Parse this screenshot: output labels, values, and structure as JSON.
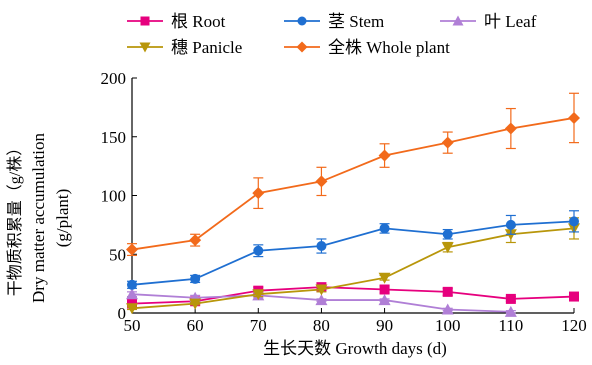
{
  "chart_data": {
    "type": "line",
    "title": "",
    "xlabel": "生长天数 Growth days (d)",
    "ylabel_lines": [
      "干物质积累量（g/株）",
      "Dry matter accumulation",
      "(g/plant)"
    ],
    "x": [
      50,
      60,
      70,
      80,
      90,
      100,
      110,
      120
    ],
    "xlim": [
      50,
      120
    ],
    "ylim": [
      0,
      200
    ],
    "xticks": [
      "50",
      "60",
      "70",
      "80",
      "90",
      "100",
      "110",
      "120"
    ],
    "yticks": [
      "0",
      "50",
      "100",
      "150",
      "200"
    ],
    "grid": false,
    "legend_position": "top",
    "series": [
      {
        "name": "根 Root",
        "color": "#e6007e",
        "marker": "square",
        "values": [
          8,
          10,
          19,
          22,
          20,
          18,
          12,
          14
        ],
        "errors": [
          2,
          2,
          3,
          2,
          3,
          3,
          2,
          2
        ]
      },
      {
        "name": "茎 Stem",
        "color": "#1f6fd1",
        "marker": "circle",
        "values": [
          24,
          29,
          53,
          57,
          72,
          67,
          75,
          78
        ],
        "errors": [
          3,
          3,
          5,
          6,
          4,
          4,
          8,
          9
        ]
      },
      {
        "name": "叶 Leaf",
        "color": "#b07fd6",
        "marker": "triangle-up",
        "values": [
          16,
          13,
          15,
          11,
          11,
          3,
          1,
          null
        ],
        "errors": [
          2,
          2,
          2,
          1,
          1,
          1,
          1,
          null
        ]
      },
      {
        "name": "穗 Panicle",
        "color": "#b8960a",
        "marker": "triangle-down",
        "values": [
          4,
          8,
          16,
          20,
          30,
          56,
          67,
          72
        ],
        "errors": [
          1,
          1,
          2,
          2,
          2,
          4,
          7,
          9
        ]
      },
      {
        "name": "全株 Whole plant",
        "color": "#f26a1b",
        "marker": "diamond",
        "values": [
          54,
          62,
          102,
          112,
          134,
          145,
          157,
          166
        ],
        "errors": [
          5,
          5,
          13,
          12,
          10,
          9,
          17,
          21
        ]
      }
    ]
  }
}
